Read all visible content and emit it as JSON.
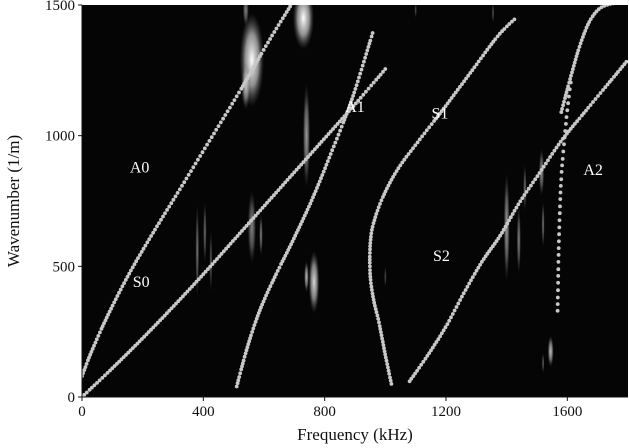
{
  "chart_data": {
    "type": "scatter",
    "title": "",
    "xlabel": "Frequency (kHz)",
    "ylabel": "Wavenumber (1/m)",
    "xlim": [
      0,
      1800
    ],
    "ylim": [
      0,
      1500
    ],
    "grid": false,
    "background": "#050505",
    "curve_color": "#c8c8c8",
    "xticks": [
      {
        "value": 0,
        "label": "0"
      },
      {
        "value": 400,
        "label": "400"
      },
      {
        "value": 800,
        "label": "800"
      },
      {
        "value": 1200,
        "label": "1200"
      },
      {
        "value": 1600,
        "label": "1600"
      }
    ],
    "yticks": [
      {
        "value": 0,
        "label": "0"
      },
      {
        "value": 500,
        "label": "500"
      },
      {
        "value": 1000,
        "label": "1000"
      },
      {
        "value": 1500,
        "label": "1500"
      }
    ],
    "series": [
      {
        "name": "A0",
        "label_at": [
          190,
          860
        ],
        "x": [
          0,
          30,
          80,
          150,
          230,
          320,
          420,
          520,
          620,
          700
        ],
        "y": [
          80,
          170,
          300,
          460,
          620,
          790,
          980,
          1170,
          1370,
          1520
        ]
      },
      {
        "name": "S0",
        "label_at": [
          195,
          420
        ],
        "x": [
          0,
          100,
          200,
          300,
          400,
          500,
          600,
          700,
          800,
          900,
          1000
        ],
        "y": [
          0,
          110,
          225,
          345,
          470,
          600,
          730,
          860,
          990,
          1120,
          1255
        ]
      },
      {
        "name": "A1",
        "label_at": [
          900,
          1090
        ],
        "x": [
          510,
          540,
          570,
          600,
          640,
          700,
          760,
          820,
          890,
          960
        ],
        "y": [
          40,
          170,
          280,
          370,
          470,
          610,
          760,
          930,
          1140,
          1400
        ]
      },
      {
        "name": "S1",
        "label_at": [
          1180,
          1065
        ],
        "x": [
          1020,
          1000,
          980,
          960,
          950,
          950,
          960,
          990,
          1040,
          1110,
          1190,
          1280,
          1370,
          1430
        ],
        "y": [
          50,
          160,
          280,
          380,
          470,
          580,
          660,
          760,
          870,
          980,
          1100,
          1240,
          1380,
          1450
        ]
      },
      {
        "name": "S2",
        "label_at": [
          1185,
          520
        ],
        "x": [
          1080,
          1140,
          1200,
          1260,
          1320,
          1380,
          1440,
          1510,
          1580,
          1650,
          1750,
          1800
        ],
        "y": [
          60,
          160,
          270,
          400,
          520,
          620,
          740,
          860,
          980,
          1080,
          1220,
          1290
        ]
      },
      {
        "name": "A2",
        "label_at": [
          1685,
          850
        ],
        "x": [
          1568,
          1570,
          1572,
          1575,
          1580,
          1590,
          1600,
          1612
        ],
        "y": [
          330,
          470,
          590,
          700,
          840,
          980,
          1100,
          1210
        ]
      },
      {
        "name": "",
        "label_at": null,
        "x": [
          1580,
          1610,
          1640,
          1670,
          1700,
          1730,
          1770
        ],
        "y": [
          1090,
          1220,
          1340,
          1430,
          1480,
          1500,
          1510
        ]
      }
    ],
    "heatmap_blobs": [
      {
        "x": 560,
        "y": 1290,
        "rx": 40,
        "ry": 180,
        "intensity": 1.0
      },
      {
        "x": 730,
        "y": 1450,
        "rx": 35,
        "ry": 120,
        "intensity": 1.0
      },
      {
        "x": 540,
        "y": 1190,
        "rx": 15,
        "ry": 90,
        "intensity": 0.7
      },
      {
        "x": 740,
        "y": 1000,
        "rx": 12,
        "ry": 200,
        "intensity": 0.6
      },
      {
        "x": 765,
        "y": 440,
        "rx": 18,
        "ry": 120,
        "intensity": 0.85
      },
      {
        "x": 740,
        "y": 460,
        "rx": 8,
        "ry": 60,
        "intensity": 0.7
      },
      {
        "x": 560,
        "y": 650,
        "rx": 14,
        "ry": 140,
        "intensity": 0.5
      },
      {
        "x": 590,
        "y": 620,
        "rx": 6,
        "ry": 80,
        "intensity": 0.5
      },
      {
        "x": 380,
        "y": 560,
        "rx": 6,
        "ry": 180,
        "intensity": 0.45
      },
      {
        "x": 405,
        "y": 630,
        "rx": 6,
        "ry": 120,
        "intensity": 0.4
      },
      {
        "x": 425,
        "y": 520,
        "rx": 5,
        "ry": 120,
        "intensity": 0.35
      },
      {
        "x": 540,
        "y": 1480,
        "rx": 10,
        "ry": 60,
        "intensity": 0.5
      },
      {
        "x": 1400,
        "y": 650,
        "rx": 10,
        "ry": 210,
        "intensity": 0.6
      },
      {
        "x": 1440,
        "y": 600,
        "rx": 7,
        "ry": 130,
        "intensity": 0.5
      },
      {
        "x": 1460,
        "y": 800,
        "rx": 6,
        "ry": 90,
        "intensity": 0.4
      },
      {
        "x": 1515,
        "y": 860,
        "rx": 9,
        "ry": 90,
        "intensity": 0.55
      },
      {
        "x": 1545,
        "y": 175,
        "rx": 10,
        "ry": 60,
        "intensity": 0.75
      },
      {
        "x": 1520,
        "y": 130,
        "rx": 4,
        "ry": 40,
        "intensity": 0.4
      },
      {
        "x": 1355,
        "y": 1470,
        "rx": 4,
        "ry": 40,
        "intensity": 0.35
      },
      {
        "x": 1100,
        "y": 1480,
        "rx": 4,
        "ry": 30,
        "intensity": 0.3
      },
      {
        "x": 1000,
        "y": 460,
        "rx": 4,
        "ry": 40,
        "intensity": 0.3
      },
      {
        "x": 1520,
        "y": 660,
        "rx": 5,
        "ry": 90,
        "intensity": 0.45
      }
    ]
  }
}
